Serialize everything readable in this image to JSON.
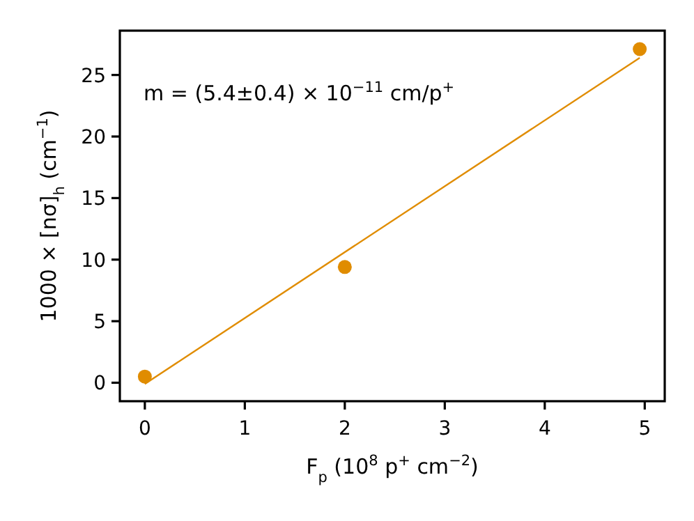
{
  "chart_data": {
    "type": "scatter",
    "xlabel": "F$_{p}$ (10$^{8}$ p$^{+}$ cm$^{−2}$)",
    "ylabel": "1000 × [nσ]$_{h}$ (cm$^{−1}$)",
    "annotations": [
      "m = (5.4±0.4) × 10$^{−11}$ cm/p$^{+}$"
    ],
    "series": [
      {
        "color": "#e08c00",
        "marker": "circle",
        "x": [
          0,
          2,
          4.95
        ],
        "values": [
          0.5,
          9.4,
          27.1
        ]
      },
      {
        "type": "line",
        "color": "#e08c00",
        "marker": "none",
        "x": [
          0,
          4.95
        ],
        "values": [
          -0.1,
          26.4
        ]
      }
    ],
    "xlim": [
      -0.25,
      5.2
    ],
    "ylim": [
      -1.5,
      28.6
    ],
    "xticks": [
      0,
      1,
      2,
      3,
      4,
      5
    ],
    "yticks": [
      0,
      5,
      10,
      15,
      20,
      25
    ],
    "grid": false,
    "line_style": "solid"
  }
}
